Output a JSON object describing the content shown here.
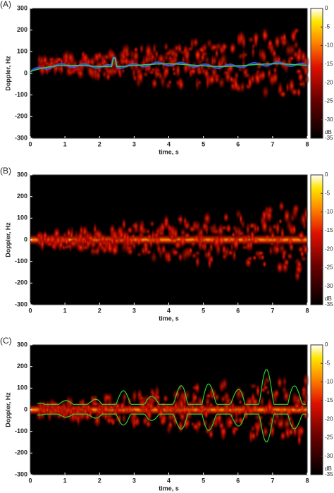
{
  "chart_data": [
    {
      "type": "heatmap",
      "panel_label": "(A)",
      "xlabel": "time, s",
      "ylabel": "Doppler, Hz",
      "xlim": [
        0,
        8
      ],
      "xticks": [
        0,
        1,
        2,
        3,
        4,
        5,
        6,
        7,
        8
      ],
      "ylim": [
        -300,
        300
      ],
      "yticks": [
        -300,
        -200,
        -100,
        0,
        100,
        200,
        300
      ],
      "clim": [
        -35,
        0
      ],
      "cticks": [
        0,
        -5,
        -10,
        -15,
        -20,
        -25,
        -30,
        -35
      ],
      "clabel": "dB"
    },
    {
      "type": "heatmap",
      "panel_label": "(B)",
      "xlabel": "time, s",
      "ylabel": "Doppler, Hz",
      "xlim": [
        0,
        8
      ],
      "xticks": [
        0,
        1,
        2,
        3,
        4,
        5,
        6,
        7,
        8
      ],
      "ylim": [
        -300,
        300
      ],
      "yticks": [
        -300,
        -200,
        -100,
        0,
        100,
        200,
        300
      ],
      "clim": [
        -35,
        0
      ],
      "cticks": [
        0,
        -5,
        -10,
        -15,
        -20,
        -25,
        -30,
        -35
      ],
      "clabel": "dB"
    },
    {
      "type": "heatmap",
      "panel_label": "(C)",
      "xlabel": "time, s",
      "ylabel": "Doppler, Hz",
      "xlim": [
        0,
        8
      ],
      "xticks": [
        0,
        1,
        2,
        3,
        4,
        5,
        6,
        7,
        8
      ],
      "ylim": [
        -300,
        300
      ],
      "yticks": [
        -300,
        -200,
        -100,
        0,
        100,
        200,
        300
      ],
      "clim": [
        -35,
        0
      ],
      "cticks": [
        0,
        -5,
        -10,
        -15,
        -20,
        -25,
        -30,
        -35
      ],
      "clabel": "dB"
    }
  ]
}
